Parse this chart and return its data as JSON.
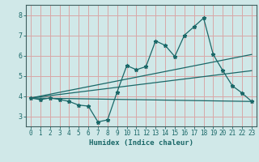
{
  "title": "",
  "xlabel": "Humidex (Indice chaleur)",
  "ylabel": "",
  "background_color": "#d0e8e8",
  "grid_color": "#d8a8a8",
  "line_color": "#1a6868",
  "xlim": [
    -0.5,
    23.5
  ],
  "ylim": [
    2.5,
    8.5
  ],
  "yticks": [
    3,
    4,
    5,
    6,
    7,
    8
  ],
  "xticks": [
    0,
    1,
    2,
    3,
    4,
    5,
    6,
    7,
    8,
    9,
    10,
    11,
    12,
    13,
    14,
    15,
    16,
    17,
    18,
    19,
    20,
    21,
    22,
    23
  ],
  "series1_x": [
    0,
    1,
    2,
    3,
    4,
    5,
    6,
    7,
    8,
    9,
    10,
    11,
    12,
    13,
    14,
    15,
    16,
    17,
    18,
    19,
    20,
    21,
    22,
    23
  ],
  "series1_y": [
    3.9,
    3.82,
    3.9,
    3.83,
    3.73,
    3.55,
    3.5,
    2.72,
    2.82,
    4.2,
    5.5,
    5.3,
    5.45,
    6.72,
    6.5,
    5.95,
    7.0,
    7.42,
    7.85,
    6.05,
    5.25,
    4.5,
    4.15,
    3.73
  ],
  "series2_x": [
    0,
    23
  ],
  "series2_y": [
    3.9,
    3.73
  ],
  "series3_x": [
    0,
    23
  ],
  "series3_y": [
    3.9,
    6.05
  ],
  "series4_x": [
    0,
    23
  ],
  "series4_y": [
    3.9,
    5.25
  ]
}
